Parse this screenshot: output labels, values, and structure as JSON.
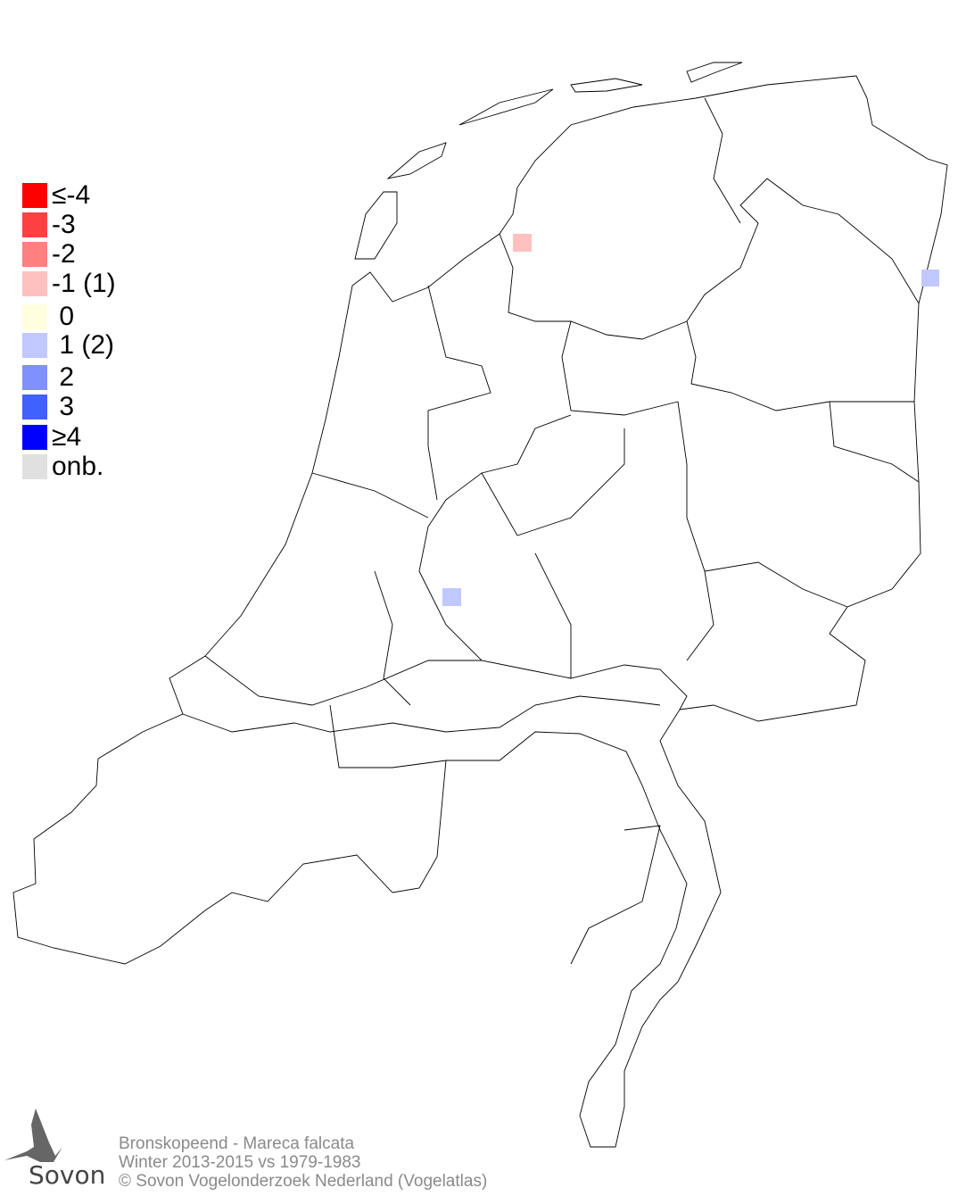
{
  "legend": {
    "items": [
      {
        "label": "≤-4",
        "color": "#ff0000"
      },
      {
        "label": "-3",
        "color": "#ff4040"
      },
      {
        "label": "-2",
        "color": "#ff8080"
      },
      {
        "label": "-1 (1)",
        "color": "#ffc0c0"
      },
      {
        "label": " 0",
        "color": "#ffffe0"
      },
      {
        "label": " 1 (2)",
        "color": "#c0c8ff"
      },
      {
        "label": " 2",
        "color": "#8090ff"
      },
      {
        "label": " 3",
        "color": "#4060ff"
      },
      {
        "label": "≥4",
        "color": "#0000ff"
      },
      {
        "label": "onb.",
        "color": "#e0e0e0"
      }
    ]
  },
  "cells": [
    {
      "value": -1,
      "color": "#ffc0c0",
      "location": "Friesland west"
    },
    {
      "value": 1,
      "color": "#c0c8ff",
      "location": "Groningen east"
    },
    {
      "value": 1,
      "color": "#c0c8ff",
      "location": "Utrecht"
    }
  ],
  "footer": {
    "line1": "Bronskopeend - Mareca falcata",
    "line2": "Winter 2013-2015 vs 1979-1983",
    "line3": "© Sovon Vogelonderzoek Nederland (Vogelatlas)"
  },
  "logo": {
    "text": "Sovon"
  }
}
